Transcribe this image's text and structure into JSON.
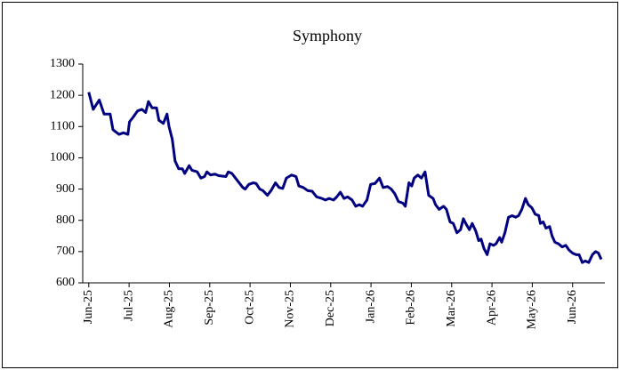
{
  "chart_data": {
    "type": "line",
    "title": "Symphony",
    "x": [
      0,
      0.11,
      0.26,
      0.38,
      0.53,
      0.6,
      0.75,
      0.86,
      0.97,
      1.01,
      1.1,
      1.21,
      1.32,
      1.41,
      1.48,
      1.57,
      1.68,
      1.74,
      1.85,
      1.94,
      1.99,
      2.07,
      2.14,
      2.23,
      2.32,
      2.38,
      2.49,
      2.56,
      2.69,
      2.78,
      2.87,
      2.93,
      3.02,
      3.13,
      3.22,
      3.4,
      3.46,
      3.55,
      3.64,
      3.73,
      3.82,
      3.88,
      3.97,
      4.08,
      4.15,
      4.24,
      4.32,
      4.43,
      4.52,
      4.63,
      4.72,
      4.81,
      4.9,
      5.03,
      5.14,
      5.21,
      5.32,
      5.43,
      5.54,
      5.65,
      5.78,
      5.87,
      5.96,
      6.07,
      6.15,
      6.24,
      6.33,
      6.42,
      6.53,
      6.62,
      6.71,
      6.79,
      6.9,
      6.99,
      7.1,
      7.21,
      7.3,
      7.41,
      7.5,
      7.59,
      7.68,
      7.79,
      7.85,
      7.94,
      8.01,
      8.07,
      8.16,
      8.25,
      8.34,
      8.43,
      8.54,
      8.6,
      8.69,
      8.8,
      8.87,
      8.96,
      9.04,
      9.13,
      9.22,
      9.29,
      9.35,
      9.44,
      9.51,
      9.6,
      9.67,
      9.73,
      9.8,
      9.88,
      9.95,
      10.04,
      10.1,
      10.19,
      10.24,
      10.32,
      10.41,
      10.5,
      10.59,
      10.66,
      10.74,
      10.83,
      10.9,
      10.99,
      11.07,
      11.16,
      11.2,
      11.27,
      11.34,
      11.43,
      11.49,
      11.56,
      11.65,
      11.74,
      11.83,
      11.91,
      12,
      12.09,
      12.16,
      12.24,
      12.31,
      12.4,
      12.49,
      12.57,
      12.64,
      12.71
    ],
    "values": [
      1210,
      1155,
      1185,
      1140,
      1140,
      1090,
      1075,
      1080,
      1075,
      1115,
      1130,
      1150,
      1155,
      1145,
      1180,
      1160,
      1160,
      1120,
      1110,
      1140,
      1100,
      1060,
      990,
      965,
      965,
      950,
      975,
      960,
      955,
      935,
      940,
      955,
      945,
      948,
      943,
      940,
      955,
      950,
      935,
      920,
      905,
      900,
      915,
      920,
      918,
      900,
      895,
      880,
      895,
      920,
      905,
      902,
      935,
      945,
      940,
      910,
      905,
      895,
      893,
      875,
      870,
      865,
      870,
      865,
      875,
      890,
      870,
      875,
      865,
      845,
      850,
      845,
      865,
      915,
      918,
      935,
      905,
      908,
      900,
      885,
      860,
      855,
      845,
      920,
      910,
      935,
      945,
      935,
      955,
      880,
      870,
      850,
      835,
      845,
      835,
      795,
      790,
      760,
      770,
      805,
      790,
      770,
      790,
      765,
      735,
      740,
      710,
      690,
      725,
      720,
      725,
      745,
      730,
      760,
      810,
      815,
      810,
      815,
      835,
      870,
      850,
      840,
      820,
      815,
      790,
      795,
      775,
      780,
      750,
      730,
      725,
      715,
      720,
      705,
      695,
      690,
      690,
      665,
      670,
      665,
      690,
      700,
      695,
      675
    ],
    "color": "#000080",
    "xlim": [
      -0.15,
      12.8
    ],
    "xticks": [
      {
        "value": 0,
        "label": "Jun-25"
      },
      {
        "value": 1,
        "label": "Jul-25"
      },
      {
        "value": 2,
        "label": "Aug-25"
      },
      {
        "value": 3,
        "label": "Sep-25"
      },
      {
        "value": 4,
        "label": "Oct-25"
      },
      {
        "value": 5,
        "label": "Nov-25"
      },
      {
        "value": 6,
        "label": "Dec-25"
      },
      {
        "value": 7,
        "label": "Jan-26"
      },
      {
        "value": 8,
        "label": "Feb-26"
      },
      {
        "value": 9,
        "label": "Mar-26"
      },
      {
        "value": 10,
        "label": "Apr-26"
      },
      {
        "value": 11,
        "label": "May-26"
      },
      {
        "value": 12,
        "label": "Jun-26"
      }
    ],
    "ylim": [
      600,
      1300
    ],
    "yticks": [
      600,
      700,
      800,
      900,
      1000,
      1100,
      1200,
      1300
    ]
  }
}
